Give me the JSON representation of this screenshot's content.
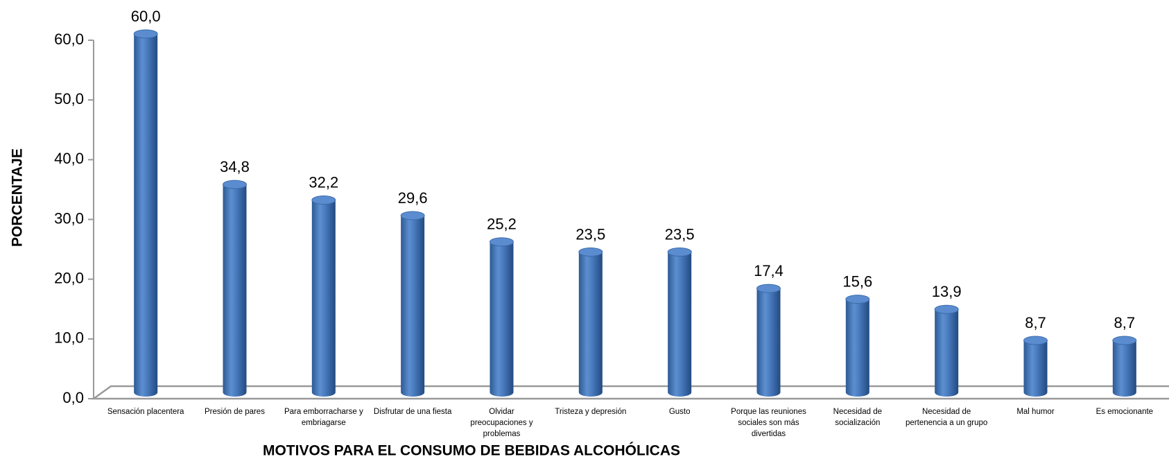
{
  "chart_data": {
    "type": "bar",
    "x_label": "MOTIVOS PARA EL CONSUMO DE BEBIDAS ALCOHÓLICAS",
    "y_label": "PORCENTAJE",
    "categories": [
      "Sensación placentera",
      "Presión de pares",
      "Para emborracharse y embriagarse",
      "Disfrutar de una fiesta",
      "Olvidar preocupaciones y problemas",
      "Tristeza y depresión",
      "Gusto",
      "Porque las reuniones sociales son más divertidas",
      "Necesidad de socialización",
      "Necesidad de pertenencia a un grupo",
      "Mal humor",
      "Es emocionante"
    ],
    "values": [
      60.0,
      34.8,
      32.2,
      29.6,
      25.2,
      23.5,
      23.5,
      17.4,
      15.6,
      13.9,
      8.7,
      8.7
    ],
    "value_labels": [
      "60,0",
      "34,8",
      "32,2",
      "29,6",
      "25,2",
      "23,5",
      "23,5",
      "17,4",
      "15,6",
      "13,9",
      "8,7",
      "8,7"
    ],
    "color": "#4f81bd",
    "ylim": [
      0,
      60
    ],
    "yticks": [
      {
        "value": 0,
        "label": "0,0"
      },
      {
        "value": 10,
        "label": "10,0"
      },
      {
        "value": 20,
        "label": "20,0"
      },
      {
        "value": 30,
        "label": "30,0"
      },
      {
        "value": 40,
        "label": "40,0"
      },
      {
        "value": 50,
        "label": "50,0"
      },
      {
        "value": 60,
        "label": "60,0"
      }
    ]
  }
}
